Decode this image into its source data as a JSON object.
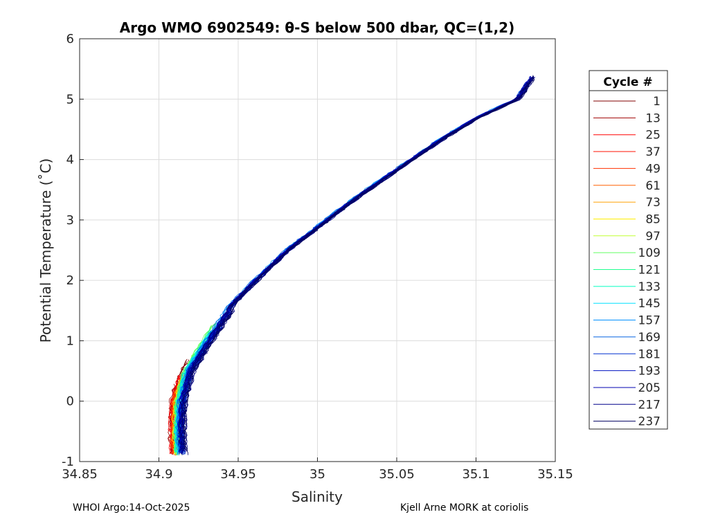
{
  "chart_data": {
    "type": "line",
    "title": "Argo WMO 6902549: θ-S below 500 dbar,  QC=(1,2)",
    "xlabel": "Salinity",
    "ylabel": "Potential Temperature (˚C)",
    "xlim": [
      34.85,
      35.15
    ],
    "ylim": [
      -1,
      6
    ],
    "xticks": [
      "34.85",
      "34.9",
      "34.95",
      "35",
      "35.05",
      "35.1",
      "35.15"
    ],
    "yticks": [
      "-1",
      "0",
      "1",
      "2",
      "3",
      "4",
      "5",
      "6"
    ],
    "grid": true,
    "legend_title": "Cycle #",
    "legend_placement": "outside-right",
    "mean_profile": {
      "salinity": [
        34.913,
        34.912,
        34.913,
        34.918,
        34.93,
        34.945,
        34.96,
        34.98,
        35.0,
        35.025,
        35.05,
        35.075,
        35.1,
        35.125,
        35.135
      ],
      "theta": [
        -0.9,
        -0.5,
        0.0,
        0.5,
        1.0,
        1.6,
        2.0,
        2.5,
        2.9,
        3.4,
        3.85,
        4.3,
        4.7,
        5.0,
        5.4
      ]
    },
    "series": [
      {
        "name": "1",
        "color": "#800000",
        "max_theta": 0.7
      },
      {
        "name": "13",
        "color": "#a00000",
        "max_theta": 0.3
      },
      {
        "name": "25",
        "color": "#ff0000",
        "max_theta": 0.45
      },
      {
        "name": "37",
        "color": "#ff1000",
        "max_theta": 0.2
      },
      {
        "name": "49",
        "color": "#ff3000",
        "max_theta": 0.2
      },
      {
        "name": "61",
        "color": "#ff6000",
        "max_theta": 0.3
      },
      {
        "name": "73",
        "color": "#ffa000",
        "max_theta": 0.3
      },
      {
        "name": "85",
        "color": "#ffee00",
        "max_theta": 0.4
      },
      {
        "name": "97",
        "color": "#c0ff30",
        "max_theta": 0.8
      },
      {
        "name": "109",
        "color": "#60ff60",
        "max_theta": 1.3
      },
      {
        "name": "121",
        "color": "#20ff90",
        "max_theta": 1.2
      },
      {
        "name": "133",
        "color": "#00ffc0",
        "max_theta": 1.0
      },
      {
        "name": "145",
        "color": "#00e0ff",
        "max_theta": 1.2
      },
      {
        "name": "157",
        "color": "#0090ff",
        "max_theta": 5.0
      },
      {
        "name": "169",
        "color": "#0060e0",
        "max_theta": 5.2
      },
      {
        "name": "181",
        "color": "#0030d0",
        "max_theta": 5.3
      },
      {
        "name": "193",
        "color": "#0010c0",
        "max_theta": 5.4
      },
      {
        "name": "205",
        "color": "#0000b0",
        "max_theta": 5.4
      },
      {
        "name": "217",
        "color": "#00008a",
        "max_theta": 5.3
      },
      {
        "name": "237",
        "color": "#000060",
        "max_theta": 5.4
      }
    ]
  },
  "footer": {
    "left": "WHOI Argo:14-Oct-2025",
    "right": "Kjell Arne MORK at coriolis"
  }
}
